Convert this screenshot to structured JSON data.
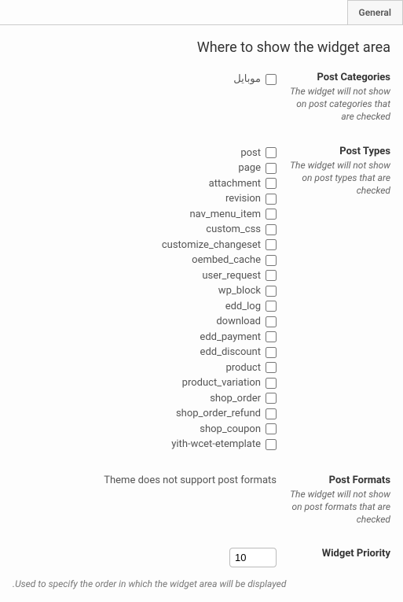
{
  "tabs": {
    "general": "General"
  },
  "section_title": "Where to show the widget area",
  "rows": {
    "post_categories": {
      "label": "Post Categories",
      "hint": "The widget will not show on post categories that are checked",
      "items": [
        "موبایل"
      ]
    },
    "post_types": {
      "label": "Post Types",
      "hint": "The widget will not show on post types that are checked",
      "items": [
        "post",
        "page",
        "attachment",
        "revision",
        "nav_menu_item",
        "custom_css",
        "customize_changeset",
        "oembed_cache",
        "user_request",
        "wp_block",
        "edd_log",
        "download",
        "edd_payment",
        "edd_discount",
        "product",
        "product_variation",
        "shop_order",
        "shop_order_refund",
        "shop_coupon",
        "yith-wcet-etemplate"
      ]
    },
    "post_formats": {
      "label": "Post Formats",
      "hint": "The widget will not show on post formats that are checked",
      "unsupported_msg": "Theme does not support post formats"
    },
    "widget_priority": {
      "label": "Widget Priority",
      "value": "10",
      "below_hint": ".Used to specify the order in which the widget area will be displayed"
    }
  }
}
